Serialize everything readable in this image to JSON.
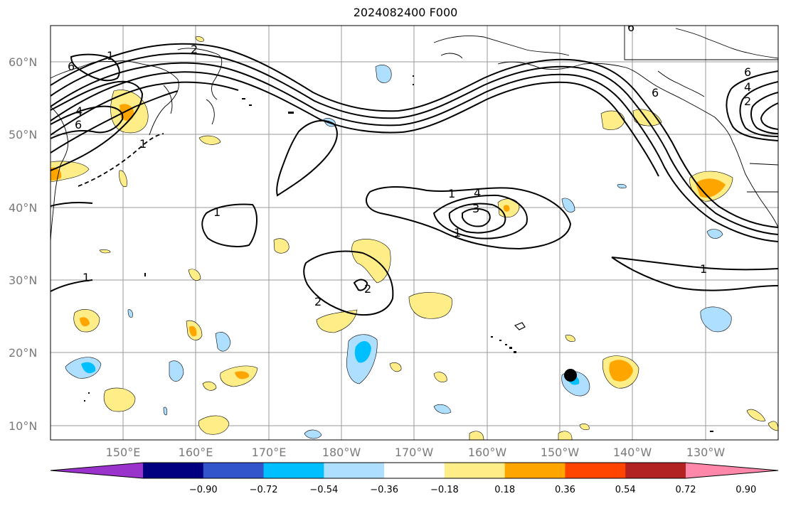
{
  "title": "2024082400 F000",
  "map": {
    "lat_labels": [
      "60°N",
      "50°N",
      "40°N",
      "30°N",
      "20°N",
      "10°N"
    ],
    "lon_labels": [
      "150°E",
      "160°E",
      "170°E",
      "180°W",
      "170°W",
      "160°W",
      "150°W",
      "140°W",
      "130°W"
    ],
    "contour_labels": [
      "6",
      "4",
      "6",
      "1",
      "1",
      "1",
      "1",
      "2",
      "4",
      "3",
      "1",
      "2",
      "1",
      "6",
      "4",
      "2",
      "6",
      "2",
      "1",
      "6"
    ],
    "marker": "filled-black-dot"
  },
  "colorbar": {
    "tick_labels": [
      "−0.90",
      "−0.72",
      "−0.54",
      "−0.36",
      "−0.18",
      "0.18",
      "0.36",
      "0.54",
      "0.72",
      "0.90"
    ],
    "colors": [
      "#9933cc",
      "#000080",
      "#3355cc",
      "#00bfff",
      "#afdfff",
      "#ffffff",
      "#ffee88",
      "#ffa500",
      "#ff4500",
      "#b22222",
      "#ff88aa"
    ]
  }
}
